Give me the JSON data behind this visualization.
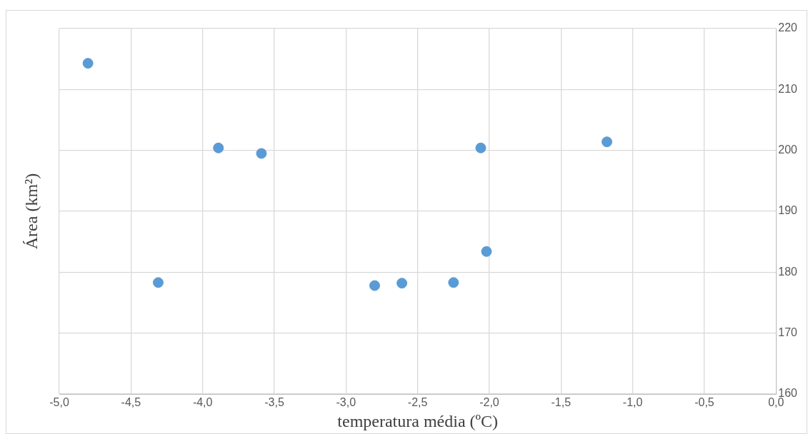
{
  "chart_data": {
    "type": "scatter",
    "xlabel": "temperatura média (ºC)",
    "ylabel": "Área (km²)",
    "series": [
      {
        "color": "#5b9bd5",
        "x": [
          -4.8,
          -4.31,
          -3.89,
          -3.59,
          -2.8,
          -2.61,
          -2.25,
          -2.06,
          -2.02,
          -1.18
        ],
        "values": [
          214.3,
          178.3,
          200.4,
          199.5,
          177.8,
          178.2,
          178.3,
          200.4,
          183.4,
          201.4
        ]
      }
    ],
    "xlim": [
      -5,
      0
    ],
    "xticks": [
      {
        "value": -5,
        "label": "-5,0"
      },
      {
        "value": -4.5,
        "label": "-4,5"
      },
      {
        "value": -4,
        "label": "-4,0"
      },
      {
        "value": -3.5,
        "label": "-3,5"
      },
      {
        "value": -3,
        "label": "-3,0"
      },
      {
        "value": -2.5,
        "label": "-2,5"
      },
      {
        "value": -2,
        "label": "-2,0"
      },
      {
        "value": -1.5,
        "label": "-1,5"
      },
      {
        "value": -1,
        "label": "-1,0"
      },
      {
        "value": -0.5,
        "label": "-0,5"
      },
      {
        "value": 0,
        "label": "0,0"
      }
    ],
    "ylim": [
      160,
      220
    ],
    "yticks": [
      160,
      170,
      180,
      190,
      200,
      210,
      220
    ],
    "grid": true,
    "legend": false,
    "marker": "circle"
  }
}
